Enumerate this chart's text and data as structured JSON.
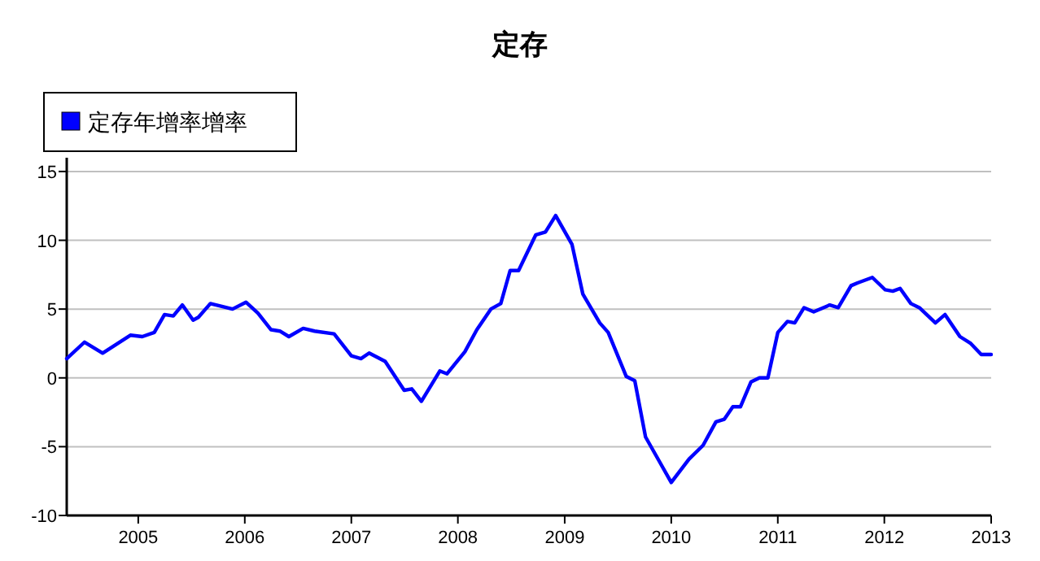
{
  "chart_data": {
    "type": "line",
    "title": "定存",
    "legend": "top left",
    "grid": "y",
    "xlim": [
      "2004-05-01",
      "2013-01-01"
    ],
    "xticks": [
      "2005",
      "2006",
      "2007",
      "2008",
      "2009",
      "2010",
      "2011",
      "2012",
      "2013"
    ],
    "ylim": [
      -10,
      16
    ],
    "yticks": [
      -10,
      -5,
      0,
      5,
      10,
      15
    ],
    "x": [
      "2004-05-01",
      "2004-07-01",
      "2004-09-01",
      "2004-12-05",
      "2005-01-15",
      "2005-02-25",
      "2005-04-01",
      "2005-05-01",
      "2005-06-01",
      "2005-07-08",
      "2005-07-26",
      "2005-09-05",
      "2005-11-20",
      "2006-01-05",
      "2006-02-15",
      "2006-04-01",
      "2006-05-01",
      "2006-06-01",
      "2006-07-20",
      "2006-08-28",
      "2006-11-03",
      "2007-01-01",
      "2007-02-03",
      "2007-03-03",
      "2007-04-27",
      "2007-07-01",
      "2007-07-27",
      "2007-08-29",
      "2007-10-31",
      "2007-11-25",
      "2008-01-25",
      "2008-03-06",
      "2008-04-23",
      "2008-05-27",
      "2008-06-28",
      "2008-07-27",
      "2008-09-24",
      "2008-10-27",
      "2008-12-01",
      "2009-01-26",
      "2009-03-04",
      "2009-05-01",
      "2009-05-30",
      "2009-07-31",
      "2009-08-29",
      "2009-10-05",
      "2009-11-22",
      "2010-01-01",
      "2010-03-03",
      "2010-04-20",
      "2010-06-03",
      "2010-07-02",
      "2010-07-31",
      "2010-08-26",
      "2010-10-01",
      "2010-10-30",
      "2010-11-28",
      "2011-01-01",
      "2011-02-03",
      "2011-02-28",
      "2011-04-01",
      "2011-05-04",
      "2011-06-28",
      "2011-07-27",
      "2011-09-09",
      "2011-10-01",
      "2011-11-21",
      "2012-01-04",
      "2012-01-30",
      "2012-02-24",
      "2012-04-01",
      "2012-04-30",
      "2012-06-24",
      "2012-07-27",
      "2012-09-16",
      "2012-10-23",
      "2012-11-28",
      "2013-01-01"
    ],
    "series": [
      {
        "name": "定存年增率增率",
        "color": "#0000ff",
        "values": [
          1.4,
          2.6,
          1.8,
          3.1,
          3.0,
          3.3,
          4.6,
          4.5,
          5.3,
          4.2,
          4.4,
          5.4,
          5.0,
          5.5,
          4.7,
          3.5,
          3.4,
          3.0,
          3.6,
          3.4,
          3.2,
          1.6,
          1.4,
          1.8,
          1.2,
          -0.9,
          -0.8,
          -1.7,
          0.5,
          0.3,
          1.9,
          3.5,
          5.0,
          5.4,
          7.8,
          7.8,
          10.4,
          10.6,
          11.8,
          9.7,
          6.1,
          4.0,
          3.3,
          0.1,
          -0.2,
          -4.3,
          -6.1,
          -7.6,
          -5.9,
          -4.9,
          -3.2,
          -3.0,
          -2.1,
          -2.1,
          -0.3,
          0.0,
          0.0,
          3.3,
          4.1,
          4.0,
          5.1,
          4.8,
          5.3,
          5.1,
          6.7,
          6.9,
          7.3,
          6.4,
          6.3,
          6.5,
          5.4,
          5.1,
          4.0,
          4.6,
          3.0,
          2.5,
          1.7,
          1.7
        ]
      }
    ]
  }
}
